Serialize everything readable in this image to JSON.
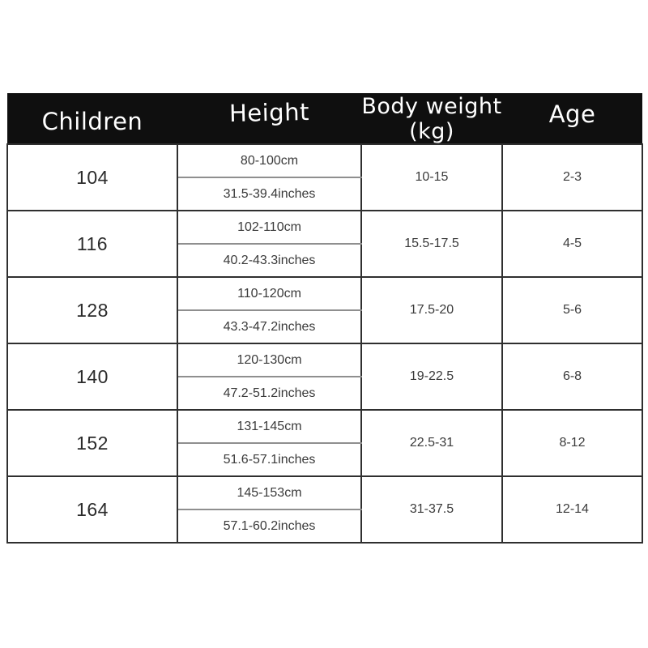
{
  "header": {
    "columns": [
      "Children",
      "Height",
      "Body weight (kg)",
      "Age"
    ]
  },
  "rows": [
    {
      "size": "104",
      "height_cm": "80-100cm",
      "height_in": "31.5-39.4inches",
      "weight": "10-15",
      "age": "2-3"
    },
    {
      "size": "116",
      "height_cm": "102-110cm",
      "height_in": "40.2-43.3inches",
      "weight": "15.5-17.5",
      "age": "4-5"
    },
    {
      "size": "128",
      "height_cm": "110-120cm",
      "height_in": "43.3-47.2inches",
      "weight": "17.5-20",
      "age": "5-6"
    },
    {
      "size": "140",
      "height_cm": "120-130cm",
      "height_in": "47.2-51.2inches",
      "weight": "19-22.5",
      "age": "6-8"
    },
    {
      "size": "152",
      "height_cm": "131-145cm",
      "height_in": "51.6-57.1inches",
      "weight": "22.5-31",
      "age": "8-12"
    },
    {
      "size": "164",
      "height_cm": "145-153cm",
      "height_in": "57.1-60.2inches",
      "weight": "31-37.5",
      "age": "12-14"
    }
  ],
  "colors": {
    "header_bg": "#0f0f0f",
    "header_text": "#ffffff",
    "grid_line": "#2f2f2f",
    "sub_line": "#8f8f8f",
    "body_text": "#3a3a3a",
    "page_bg": "#ffffff"
  }
}
